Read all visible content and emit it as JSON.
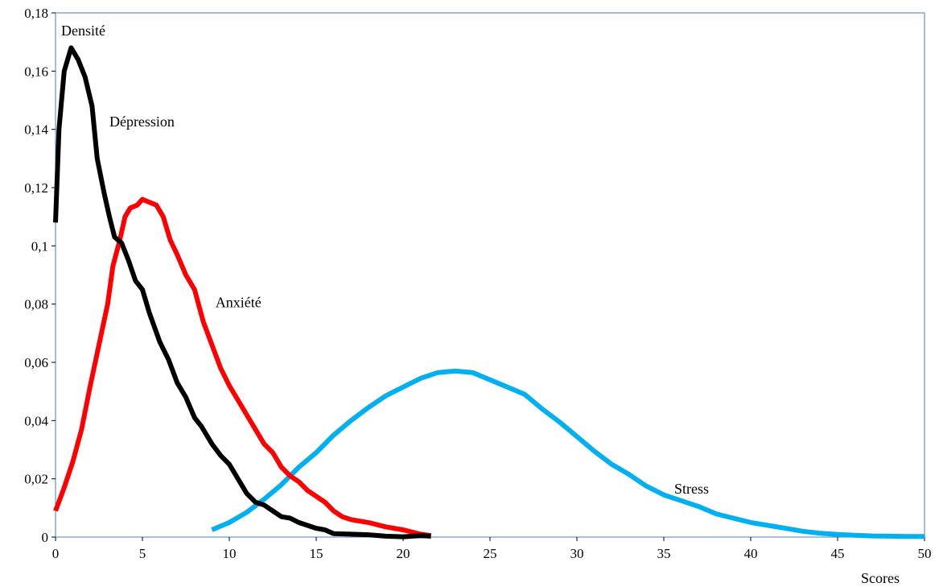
{
  "chart_data": {
    "type": "line",
    "title": "",
    "xlabel": "Scores",
    "ylabel": "Densité",
    "xlim": [
      0,
      50
    ],
    "ylim": [
      0,
      0.18
    ],
    "grid": false,
    "legend": "none",
    "x_ticks": [
      0,
      5,
      10,
      15,
      20,
      25,
      30,
      35,
      40,
      45,
      50
    ],
    "x_tick_labels": [
      "0",
      "5",
      "10",
      "15",
      "20",
      "25",
      "30",
      "35",
      "40",
      "45",
      "50"
    ],
    "y_ticks": [
      0,
      0.02,
      0.04,
      0.06,
      0.08,
      0.1,
      0.12,
      0.14,
      0.16,
      0.18
    ],
    "y_tick_labels": [
      "0",
      "0,02",
      "0,04",
      "0,06",
      "0,08",
      "0,1",
      "0,12",
      "0,14",
      "0,16",
      "0,18"
    ],
    "series": [
      {
        "name": "Dépression",
        "color": "#000000",
        "label_anchor": [
          3.1,
          0.141
        ],
        "points": [
          [
            0,
            0.108
          ],
          [
            0.2,
            0.14
          ],
          [
            0.5,
            0.16
          ],
          [
            0.9,
            0.168
          ],
          [
            1.3,
            0.164
          ],
          [
            1.7,
            0.158
          ],
          [
            2.1,
            0.148
          ],
          [
            2.4,
            0.13
          ],
          [
            2.8,
            0.118
          ],
          [
            3.1,
            0.11
          ],
          [
            3.4,
            0.103
          ],
          [
            3.8,
            0.101
          ],
          [
            4.2,
            0.095
          ],
          [
            4.6,
            0.088
          ],
          [
            5.0,
            0.085
          ],
          [
            5.4,
            0.077
          ],
          [
            6.0,
            0.067
          ],
          [
            6.5,
            0.061
          ],
          [
            7.0,
            0.053
          ],
          [
            7.5,
            0.048
          ],
          [
            8.0,
            0.041
          ],
          [
            8.4,
            0.038
          ],
          [
            9.0,
            0.032
          ],
          [
            9.5,
            0.028
          ],
          [
            10.0,
            0.025
          ],
          [
            10.5,
            0.02
          ],
          [
            11.0,
            0.015
          ],
          [
            11.5,
            0.012
          ],
          [
            12.0,
            0.011
          ],
          [
            12.5,
            0.009
          ],
          [
            13.0,
            0.007
          ],
          [
            13.5,
            0.0065
          ],
          [
            14.0,
            0.005
          ],
          [
            14.5,
            0.004
          ],
          [
            15.0,
            0.003
          ],
          [
            15.5,
            0.0025
          ],
          [
            16.0,
            0.0012
          ],
          [
            17.0,
            0.001
          ],
          [
            18.0,
            0.0008
          ],
          [
            19.0,
            0.0003
          ],
          [
            20.0,
            0.0001
          ],
          [
            21.0,
            0.0005
          ],
          [
            21.6,
            0.0003
          ]
        ]
      },
      {
        "name": "Anxiété",
        "color": "#ff0000",
        "label_anchor": [
          9.2,
          0.079
        ],
        "points": [
          [
            0,
            0.009
          ],
          [
            0.5,
            0.017
          ],
          [
            1.0,
            0.026
          ],
          [
            1.5,
            0.037
          ],
          [
            2.0,
            0.052
          ],
          [
            2.5,
            0.066
          ],
          [
            3.0,
            0.08
          ],
          [
            3.3,
            0.093
          ],
          [
            3.7,
            0.102
          ],
          [
            4.0,
            0.11
          ],
          [
            4.3,
            0.113
          ],
          [
            4.7,
            0.114
          ],
          [
            5.0,
            0.116
          ],
          [
            5.4,
            0.115
          ],
          [
            5.8,
            0.114
          ],
          [
            6.2,
            0.11
          ],
          [
            6.6,
            0.102
          ],
          [
            7.0,
            0.097
          ],
          [
            7.5,
            0.09
          ],
          [
            8.0,
            0.085
          ],
          [
            8.5,
            0.074
          ],
          [
            9.0,
            0.066
          ],
          [
            9.5,
            0.058
          ],
          [
            10.0,
            0.052
          ],
          [
            10.5,
            0.047
          ],
          [
            11.0,
            0.042
          ],
          [
            11.5,
            0.037
          ],
          [
            12.0,
            0.032
          ],
          [
            12.5,
            0.029
          ],
          [
            13.0,
            0.024
          ],
          [
            13.5,
            0.021
          ],
          [
            14.0,
            0.019
          ],
          [
            14.5,
            0.016
          ],
          [
            15.0,
            0.014
          ],
          [
            15.5,
            0.012
          ],
          [
            16.0,
            0.009
          ],
          [
            16.5,
            0.007
          ],
          [
            17.0,
            0.006
          ],
          [
            18.0,
            0.005
          ],
          [
            19.0,
            0.0035
          ],
          [
            20.0,
            0.0025
          ],
          [
            21.0,
            0.001
          ],
          [
            21.6,
            0.0005
          ]
        ]
      },
      {
        "name": "Stress",
        "color": "#00b0f0",
        "label_anchor": [
          35.6,
          0.015
        ],
        "points": [
          [
            9.0,
            0.0025
          ],
          [
            10.0,
            0.005
          ],
          [
            11.0,
            0.0085
          ],
          [
            12.0,
            0.013
          ],
          [
            13.0,
            0.018
          ],
          [
            14.0,
            0.024
          ],
          [
            15.0,
            0.029
          ],
          [
            16.0,
            0.035
          ],
          [
            17.0,
            0.04
          ],
          [
            18.0,
            0.0445
          ],
          [
            19.0,
            0.0485
          ],
          [
            20.0,
            0.0515
          ],
          [
            21.0,
            0.0545
          ],
          [
            22.0,
            0.0565
          ],
          [
            23.0,
            0.057
          ],
          [
            24.0,
            0.0565
          ],
          [
            25.0,
            0.054
          ],
          [
            26.0,
            0.0515
          ],
          [
            27.0,
            0.049
          ],
          [
            28.0,
            0.044
          ],
          [
            29.0,
            0.0395
          ],
          [
            30.0,
            0.0345
          ],
          [
            31.0,
            0.0295
          ],
          [
            32.0,
            0.025
          ],
          [
            33.0,
            0.0215
          ],
          [
            34.0,
            0.0175
          ],
          [
            35.0,
            0.0145
          ],
          [
            36.0,
            0.0125
          ],
          [
            37.0,
            0.0105
          ],
          [
            38.0,
            0.008
          ],
          [
            39.0,
            0.0065
          ],
          [
            40.0,
            0.005
          ],
          [
            41.0,
            0.004
          ],
          [
            42.0,
            0.003
          ],
          [
            43.0,
            0.002
          ],
          [
            44.0,
            0.0013
          ],
          [
            45.0,
            0.0009
          ],
          [
            46.0,
            0.0006
          ],
          [
            47.0,
            0.0004
          ],
          [
            48.0,
            0.0003
          ],
          [
            49.0,
            0.0002
          ],
          [
            50.0,
            0.0002
          ]
        ]
      }
    ]
  }
}
